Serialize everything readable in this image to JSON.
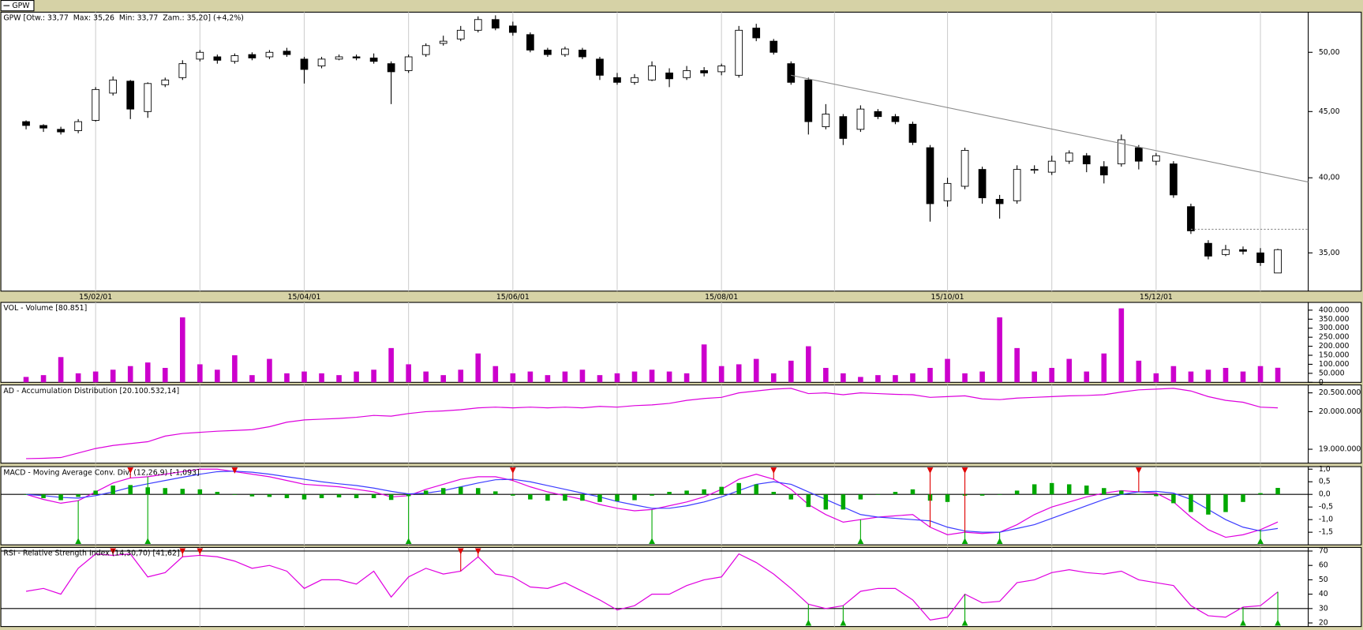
{
  "tab": "GPW",
  "chart_data": [
    {
      "type": "candlestick",
      "title": "GPW [Otw.: 33,77  Max: 35,26  Min: 33,77  Zam.: 35,20] (+4,2%)",
      "categories": [
        null,
        null,
        null,
        null,
        "15/02/01",
        null,
        null,
        null,
        null,
        null,
        null,
        null,
        null,
        null,
        null,
        null,
        "15/04/01",
        null,
        null,
        null,
        null,
        null,
        null,
        null,
        null,
        null,
        null,
        null,
        "15/06/01",
        null,
        null,
        null,
        null,
        null,
        null,
        null,
        null,
        null,
        null,
        null,
        "15/08/01",
        null,
        null,
        null,
        null,
        null,
        null,
        null,
        null,
        null,
        null,
        null,
        null,
        "15/10/01",
        null,
        null,
        null,
        null,
        null,
        null,
        null,
        null,
        null,
        null,
        null,
        "15/12/01",
        null,
        null,
        null,
        null,
        null,
        null,
        null
      ],
      "open": [
        44.2,
        43.9,
        43.6,
        43.5,
        44.3,
        46.5,
        47.5,
        45.0,
        47.2,
        47.8,
        49.4,
        49.6,
        49.2,
        49.8,
        49.6,
        50.1,
        49.4,
        48.8,
        49.4,
        49.6,
        49.5,
        49.0,
        48.4,
        49.8,
        50.8,
        51.2,
        52.0,
        53.0,
        52.4,
        51.6,
        50.2,
        49.8,
        50.2,
        49.4,
        47.8,
        47.4,
        47.6,
        48.2,
        47.8,
        48.4,
        48.3,
        48.0,
        52.2,
        51.0,
        49.0,
        47.6,
        43.8,
        44.6,
        43.6,
        45.0,
        44.6,
        44.0,
        42.2,
        38.4,
        39.4,
        40.6,
        38.5,
        38.4,
        40.6,
        40.4,
        41.2,
        41.6,
        40.8,
        41.0,
        42.2,
        41.2,
        41.0,
        38.0,
        35.6,
        34.9,
        35.2,
        35.0,
        33.77
      ],
      "high": [
        44.3,
        44.0,
        43.8,
        44.4,
        47.0,
        47.9,
        47.6,
        47.4,
        47.8,
        49.3,
        50.2,
        49.8,
        49.9,
        50.0,
        50.2,
        50.4,
        49.6,
        49.6,
        49.8,
        49.8,
        49.9,
        49.2,
        49.8,
        50.8,
        51.5,
        52.4,
        53.3,
        53.4,
        52.8,
        51.8,
        50.4,
        50.5,
        50.4,
        49.6,
        48.2,
        48.1,
        49.2,
        48.6,
        48.8,
        48.7,
        49.0,
        52.4,
        52.6,
        51.2,
        49.2,
        47.8,
        45.6,
        44.8,
        45.5,
        45.2,
        44.8,
        44.2,
        42.4,
        40.0,
        42.2,
        40.8,
        38.8,
        40.9,
        40.9,
        41.6,
        42.0,
        41.8,
        41.2,
        43.2,
        42.4,
        41.8,
        41.2,
        38.2,
        35.8,
        35.5,
        35.4,
        35.3,
        35.26
      ],
      "low": [
        43.6,
        43.4,
        43.2,
        43.3,
        44.2,
        46.3,
        44.4,
        44.5,
        47.0,
        47.6,
        49.2,
        49.0,
        49.0,
        49.3,
        49.4,
        49.6,
        47.3,
        48.6,
        49.3,
        49.3,
        49.0,
        45.6,
        48.2,
        49.6,
        50.6,
        51.0,
        51.8,
        52.0,
        51.5,
        50.0,
        49.6,
        49.6,
        49.4,
        47.6,
        47.2,
        47.2,
        47.5,
        47.0,
        47.6,
        47.9,
        48.0,
        47.8,
        51.0,
        49.8,
        47.2,
        43.2,
        43.6,
        42.4,
        43.4,
        44.4,
        44.0,
        42.4,
        37.0,
        38.0,
        39.2,
        38.2,
        37.2,
        38.2,
        40.3,
        40.2,
        41.0,
        40.4,
        39.6,
        40.8,
        40.6,
        40.9,
        38.6,
        36.2,
        34.6,
        34.8,
        34.9,
        34.2,
        33.77
      ],
      "close": [
        43.9,
        43.7,
        43.4,
        44.2,
        46.8,
        47.6,
        45.2,
        47.3,
        47.6,
        49.0,
        50.0,
        49.3,
        49.7,
        49.5,
        50.0,
        49.8,
        48.5,
        49.4,
        49.6,
        49.5,
        49.2,
        48.3,
        49.6,
        50.6,
        51.0,
        52.0,
        53.0,
        52.2,
        51.8,
        50.2,
        49.8,
        50.3,
        49.6,
        48.0,
        47.4,
        47.8,
        48.8,
        47.7,
        48.4,
        48.2,
        48.8,
        52.0,
        51.3,
        50.0,
        47.4,
        44.2,
        44.8,
        42.9,
        45.2,
        44.6,
        44.2,
        42.6,
        38.2,
        39.6,
        42.0,
        38.6,
        38.2,
        40.6,
        40.6,
        41.2,
        41.8,
        41.0,
        40.2,
        42.8,
        41.2,
        41.6,
        38.8,
        36.4,
        34.8,
        35.2,
        35.1,
        34.4,
        35.2
      ],
      "up_color": "#ffffff",
      "down_color": "#000000",
      "log_scale": true,
      "ylim": [
        32.7,
        53.7
      ],
      "yticks": [
        {
          "value": 35,
          "label": "35,00"
        },
        {
          "value": 40,
          "label": "40,00"
        },
        {
          "value": 45,
          "label": "45,00"
        },
        {
          "value": 50,
          "label": "50,00"
        }
      ],
      "trendlines": [
        {
          "x": [
            44,
            73.75
          ],
          "y": [
            48.0,
            39.7
          ],
          "style": "solid",
          "color": "#8c8c8c"
        },
        {
          "x": [
            67,
            73.75
          ],
          "y": [
            36.5,
            36.5
          ],
          "style": "dotted",
          "color": "#8c8c8c"
        }
      ]
    },
    {
      "type": "bar",
      "title": "VOL - Volume [80.851]",
      "color": "#cc00cc",
      "values": [
        30000,
        40000,
        140000,
        50000,
        60000,
        70000,
        90000,
        110000,
        80000,
        360000,
        100000,
        70000,
        150000,
        40000,
        130000,
        50000,
        60000,
        50000,
        40000,
        60000,
        70000,
        190000,
        100000,
        60000,
        40000,
        70000,
        160000,
        90000,
        50000,
        60000,
        40000,
        60000,
        70000,
        40000,
        50000,
        60000,
        70000,
        60000,
        50000,
        210000,
        90000,
        100000,
        130000,
        50000,
        120000,
        200000,
        80000,
        50000,
        30000,
        40000,
        40000,
        50000,
        80000,
        130000,
        50000,
        60000,
        360000,
        190000,
        60000,
        80000,
        130000,
        60000,
        160000,
        410000,
        120000,
        50000,
        90000,
        60000,
        70000,
        80000,
        60000,
        90000,
        80851
      ],
      "ylim": [
        0,
        443000
      ],
      "yticks": [
        0,
        {
          "value": 50000,
          "label": "50.000"
        },
        {
          "value": 100000,
          "label": "100.000"
        },
        {
          "value": 150000,
          "label": "150.000"
        },
        {
          "value": 200000,
          "label": "200.000"
        },
        {
          "value": 250000,
          "label": "250.000"
        },
        {
          "value": 300000,
          "label": "300.000"
        },
        {
          "value": 350000,
          "label": "350.000"
        },
        {
          "value": 400000,
          "label": "400.000"
        }
      ]
    },
    {
      "type": "line",
      "title": "AD - Accumulation Distribution [20.100.532,14]",
      "series": [
        {
          "color": "#dd00dd",
          "values": [
            18750000,
            18760000,
            18780000,
            18900000,
            19020000,
            19100000,
            19150000,
            19200000,
            19350000,
            19420000,
            19450000,
            19480000,
            19500000,
            19520000,
            19600000,
            19720000,
            19780000,
            19800000,
            19820000,
            19850000,
            19900000,
            19880000,
            19950000,
            20000000,
            20020000,
            20050000,
            20100000,
            20120000,
            20100000,
            20120000,
            20100000,
            20120000,
            20100000,
            20140000,
            20120000,
            20160000,
            20180000,
            20220000,
            20300000,
            20350000,
            20380000,
            20500000,
            20550000,
            20600000,
            20620000,
            20480000,
            20500000,
            20450000,
            20500000,
            20480000,
            20460000,
            20450000,
            20380000,
            20400000,
            20420000,
            20340000,
            20320000,
            20360000,
            20380000,
            20400000,
            20420000,
            20430000,
            20450000,
            20520000,
            20580000,
            20600000,
            20620000,
            20550000,
            20400000,
            20300000,
            20250000,
            20120000,
            20100532.14
          ]
        }
      ],
      "ylim": [
        18630000,
        20710000
      ],
      "yticks": [
        {
          "value": 19000000,
          "label": "19.000.000"
        },
        {
          "value": 20000000,
          "label": "20.000.000"
        },
        {
          "value": 20500000,
          "label": "20.500.000"
        }
      ]
    },
    {
      "type": "combo",
      "title": "MACD - Moving Average Conv. Div. (12,26,9) [-1,093]",
      "series": [
        {
          "type": "line",
          "color": "#e000e0",
          "values": [
            0.0,
            -0.2,
            -0.35,
            -0.25,
            0.1,
            0.45,
            0.65,
            0.7,
            0.8,
            0.9,
            1.0,
            1.0,
            0.9,
            0.8,
            0.7,
            0.55,
            0.4,
            0.35,
            0.3,
            0.2,
            0.1,
            -0.1,
            -0.05,
            0.2,
            0.4,
            0.6,
            0.7,
            0.7,
            0.55,
            0.3,
            0.1,
            -0.05,
            -0.2,
            -0.4,
            -0.55,
            -0.65,
            -0.6,
            -0.45,
            -0.3,
            -0.1,
            0.2,
            0.6,
            0.8,
            0.6,
            0.2,
            -0.4,
            -0.8,
            -1.1,
            -1.0,
            -0.9,
            -0.85,
            -0.8,
            -1.3,
            -1.6,
            -1.5,
            -1.55,
            -1.5,
            -1.2,
            -0.8,
            -0.5,
            -0.3,
            -0.1,
            0.05,
            0.15,
            0.1,
            0.05,
            -0.3,
            -0.9,
            -1.4,
            -1.7,
            -1.6,
            -1.4,
            -1.093
          ]
        },
        {
          "type": "line",
          "color": "#3c3cff",
          "values": [
            0.0,
            -0.05,
            -0.12,
            -0.15,
            -0.05,
            0.1,
            0.28,
            0.42,
            0.55,
            0.68,
            0.8,
            0.9,
            0.92,
            0.88,
            0.8,
            0.7,
            0.6,
            0.5,
            0.42,
            0.35,
            0.25,
            0.12,
            0.02,
            0.05,
            0.15,
            0.3,
            0.45,
            0.58,
            0.6,
            0.5,
            0.35,
            0.2,
            0.05,
            -0.1,
            -0.28,
            -0.42,
            -0.55,
            -0.55,
            -0.45,
            -0.3,
            -0.1,
            0.15,
            0.4,
            0.5,
            0.4,
            0.1,
            -0.2,
            -0.5,
            -0.8,
            -0.9,
            -0.95,
            -1.0,
            -1.05,
            -1.3,
            -1.45,
            -1.5,
            -1.5,
            -1.35,
            -1.2,
            -0.95,
            -0.7,
            -0.45,
            -0.2,
            0.0,
            0.1,
            0.12,
            0.05,
            -0.2,
            -0.6,
            -1.0,
            -1.3,
            -1.45,
            -1.35
          ]
        },
        {
          "type": "bar",
          "color": "#00a800",
          "values": [
            0,
            -0.15,
            -0.23,
            -0.1,
            0.15,
            0.35,
            0.37,
            0.28,
            0.25,
            0.22,
            0.2,
            0.1,
            -0.02,
            -0.08,
            -0.1,
            -0.15,
            -0.2,
            -0.15,
            -0.12,
            -0.15,
            -0.15,
            -0.22,
            -0.07,
            0.15,
            0.25,
            0.3,
            0.25,
            0.12,
            -0.05,
            -0.2,
            -0.25,
            -0.25,
            -0.25,
            -0.3,
            -0.27,
            -0.23,
            -0.05,
            0.1,
            0.15,
            0.2,
            0.3,
            0.45,
            0.4,
            0.1,
            -0.2,
            -0.5,
            -0.6,
            -0.6,
            -0.2,
            0,
            0.1,
            0.2,
            -0.25,
            -0.3,
            -0.05,
            -0.05,
            0,
            0.15,
            0.4,
            0.45,
            0.4,
            0.35,
            0.25,
            0.15,
            0,
            -0.07,
            -0.35,
            -0.7,
            -0.8,
            -0.7,
            -0.3,
            0.05,
            0.257
          ]
        }
      ],
      "levels": [
        0
      ],
      "sell_signals": [
        6,
        12,
        28,
        43,
        52,
        54,
        64
      ],
      "buy_signals": [
        3,
        7,
        22,
        36,
        48,
        54,
        56,
        71
      ],
      "ylim": [
        -2.0,
        1.1
      ],
      "yticks": [
        {
          "value": -1.5,
          "label": "-1,5"
        },
        {
          "value": -1.0,
          "label": "-1,0"
        },
        {
          "value": -0.5,
          "label": "-0,5"
        },
        {
          "value": 0,
          "label": "0,0"
        },
        {
          "value": 0.5,
          "label": "0,5"
        },
        {
          "value": 1.0,
          "label": "1,0"
        }
      ]
    },
    {
      "type": "line",
      "title": "RSI - Relative Strength Index (14,30,70) [41,62]",
      "series": [
        {
          "color": "#e000e0",
          "values": [
            42,
            44,
            40,
            58,
            68,
            67,
            68,
            52,
            55,
            66,
            67,
            66,
            63,
            58,
            60,
            56,
            44,
            50,
            50,
            47,
            56,
            38,
            52,
            58,
            54,
            56,
            66,
            54,
            52,
            45,
            44,
            48,
            42,
            36,
            29,
            32,
            40,
            40,
            46,
            50,
            52,
            68,
            62,
            54,
            44,
            33,
            30,
            32,
            42,
            44,
            44,
            36,
            22,
            24,
            40,
            34,
            35,
            48,
            50,
            55,
            57,
            55,
            54,
            56,
            50,
            48,
            46,
            32,
            25,
            24,
            31,
            32,
            41.62
          ]
        }
      ],
      "levels": [
        30,
        70
      ],
      "sell_signals": [
        5,
        9,
        10,
        25,
        26
      ],
      "buy_signals": [
        45,
        47,
        54,
        70,
        72
      ],
      "ylim": [
        17.5,
        72.5
      ],
      "yticks": [
        20,
        30,
        40,
        50,
        60,
        70
      ]
    }
  ]
}
